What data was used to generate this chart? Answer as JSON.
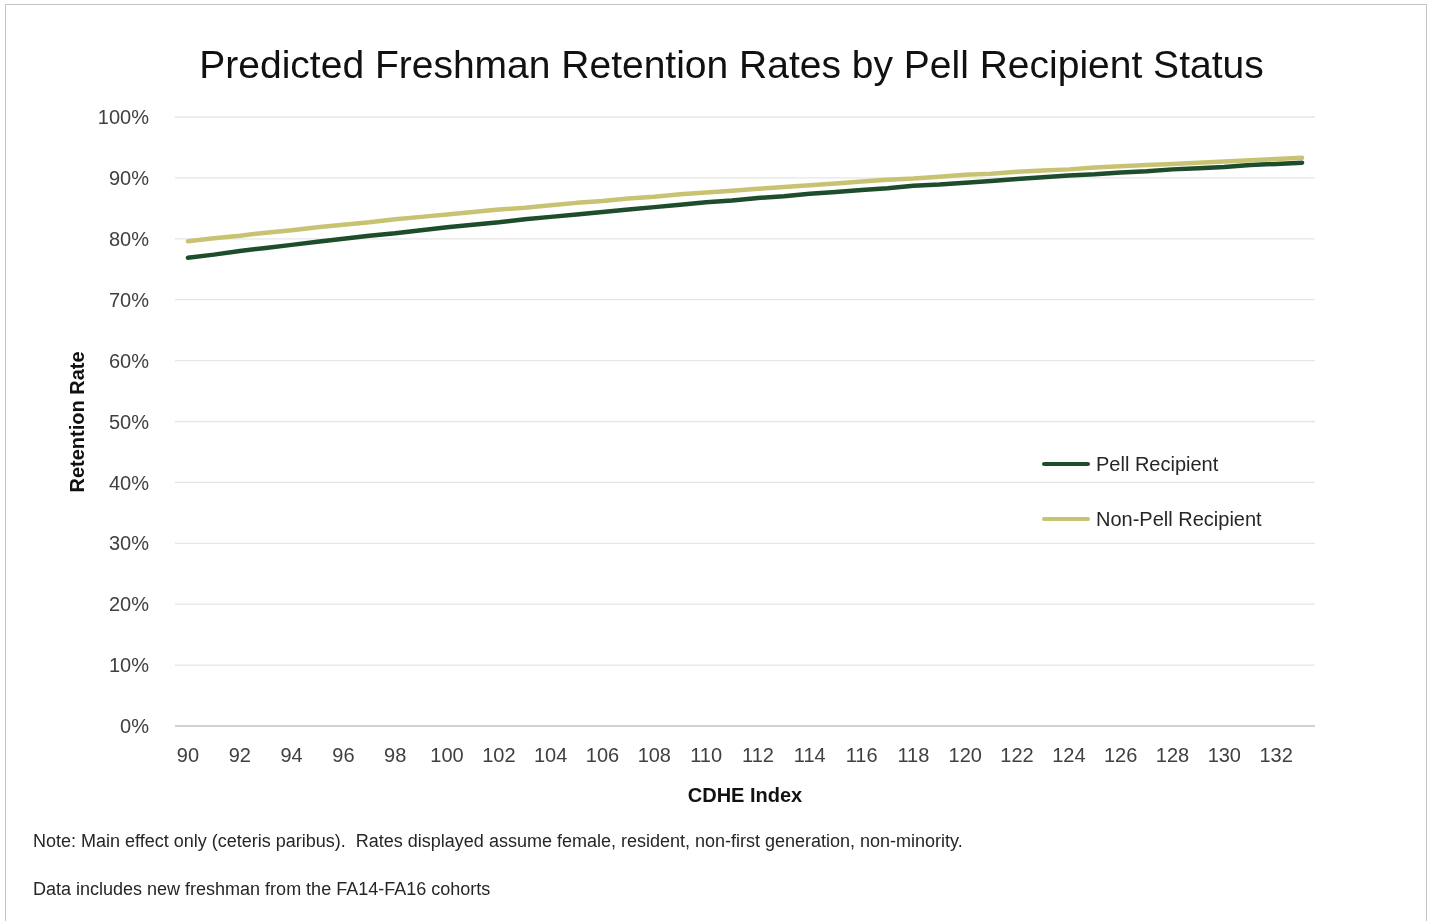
{
  "chart_data": {
    "type": "line",
    "title": "Predicted Freshman Retention Rates by Pell Recipient Status",
    "xlabel": "CDHE Index",
    "ylabel": "Retention Rate",
    "categories": [
      "90",
      null,
      "92",
      null,
      "94",
      null,
      "96",
      null,
      "98",
      null,
      "100",
      null,
      "102",
      null,
      "104",
      null,
      "106",
      null,
      "108",
      null,
      "110",
      null,
      "112",
      null,
      "114",
      null,
      "116",
      null,
      "118",
      null,
      "120",
      null,
      "122",
      null,
      "124",
      null,
      "126",
      null,
      "128",
      null,
      "130",
      null,
      "132",
      null
    ],
    "series": [
      {
        "name": "Pell Recipient",
        "color": "#1e4d2b",
        "values": [
          76.9,
          77.4,
          78.0,
          78.5,
          79.0,
          79.5,
          80.0,
          80.5,
          80.9,
          81.4,
          81.9,
          82.3,
          82.7,
          83.2,
          83.6,
          84.0,
          84.4,
          84.8,
          85.2,
          85.6,
          86.0,
          86.3,
          86.7,
          87.0,
          87.4,
          87.7,
          88.0,
          88.3,
          88.7,
          88.9,
          89.2,
          89.5,
          89.8,
          90.1,
          90.4,
          90.6,
          90.9,
          91.1,
          91.4,
          91.6,
          91.8,
          92.1,
          92.3,
          92.5
        ]
      },
      {
        "name": "Non-Pell Recipient",
        "color": "#c8c372",
        "values": [
          79.6,
          80.1,
          80.5,
          81.0,
          81.4,
          81.9,
          82.3,
          82.7,
          83.2,
          83.6,
          84.0,
          84.4,
          84.8,
          85.1,
          85.5,
          85.9,
          86.2,
          86.6,
          86.9,
          87.3,
          87.6,
          87.9,
          88.2,
          88.5,
          88.8,
          89.1,
          89.4,
          89.7,
          89.9,
          90.2,
          90.5,
          90.7,
          91.0,
          91.2,
          91.4,
          91.7,
          91.9,
          92.1,
          92.3,
          92.5,
          92.7,
          92.9,
          93.1,
          93.3
        ]
      }
    ],
    "ylim": [
      0,
      100
    ],
    "yticks": [
      {
        "value": 0,
        "label": "0%"
      },
      {
        "value": 10,
        "label": "10%"
      },
      {
        "value": 20,
        "label": "20%"
      },
      {
        "value": 30,
        "label": "30%"
      },
      {
        "value": 40,
        "label": "40%"
      },
      {
        "value": 50,
        "label": "50%"
      },
      {
        "value": 60,
        "label": "60%"
      },
      {
        "value": 70,
        "label": "70%"
      },
      {
        "value": 80,
        "label": "80%"
      },
      {
        "value": 90,
        "label": "90%"
      },
      {
        "value": 100,
        "label": "100%"
      }
    ],
    "grid": "y",
    "legend": "right",
    "annotations": [
      "Note: Main effect only (ceteris paribus).  Rates displayed assume female, resident, non-first generation, non-minority.",
      "Data includes new freshman from the FA14-FA16 cohorts"
    ]
  }
}
